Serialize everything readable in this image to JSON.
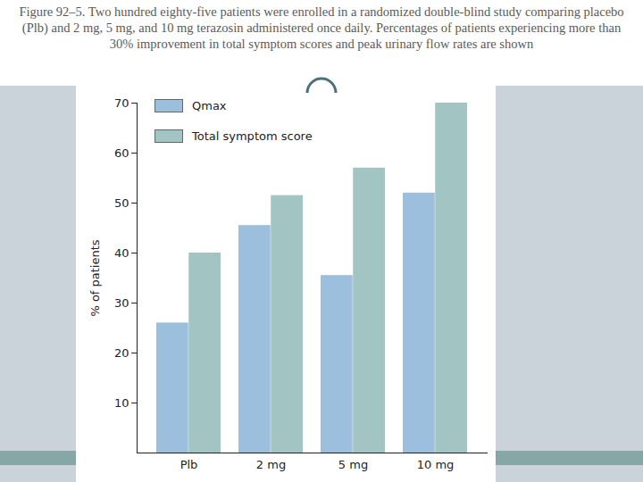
{
  "chart_data": {
    "type": "bar",
    "title": "Figure 92–5. Two hundred eighty-five patients were enrolled in a randomized double-blind study comparing placebo (Plb) and 2 mg, 5 mg, and 10 mg terazosin administered once daily. Percentages of patients experiencing more than 30% improvement in total symptom scores and peak urinary flow rates are shown",
    "y_label": "% of patients",
    "categories": [
      "Plb",
      "2 mg",
      "5 mg",
      "10 mg"
    ],
    "series": [
      {
        "name": "Qmax",
        "color": "#9cbfdd",
        "values": [
          26,
          45.5,
          35.5,
          52
        ]
      },
      {
        "name": "Total symptom score",
        "color": "#a2c5c3",
        "values": [
          40,
          51.5,
          57,
          70
        ]
      }
    ],
    "ylim": [
      0,
      70
    ],
    "yticks": [
      10,
      20,
      30,
      40,
      50,
      60,
      70
    ],
    "grid": false,
    "legend": "top-left"
  }
}
